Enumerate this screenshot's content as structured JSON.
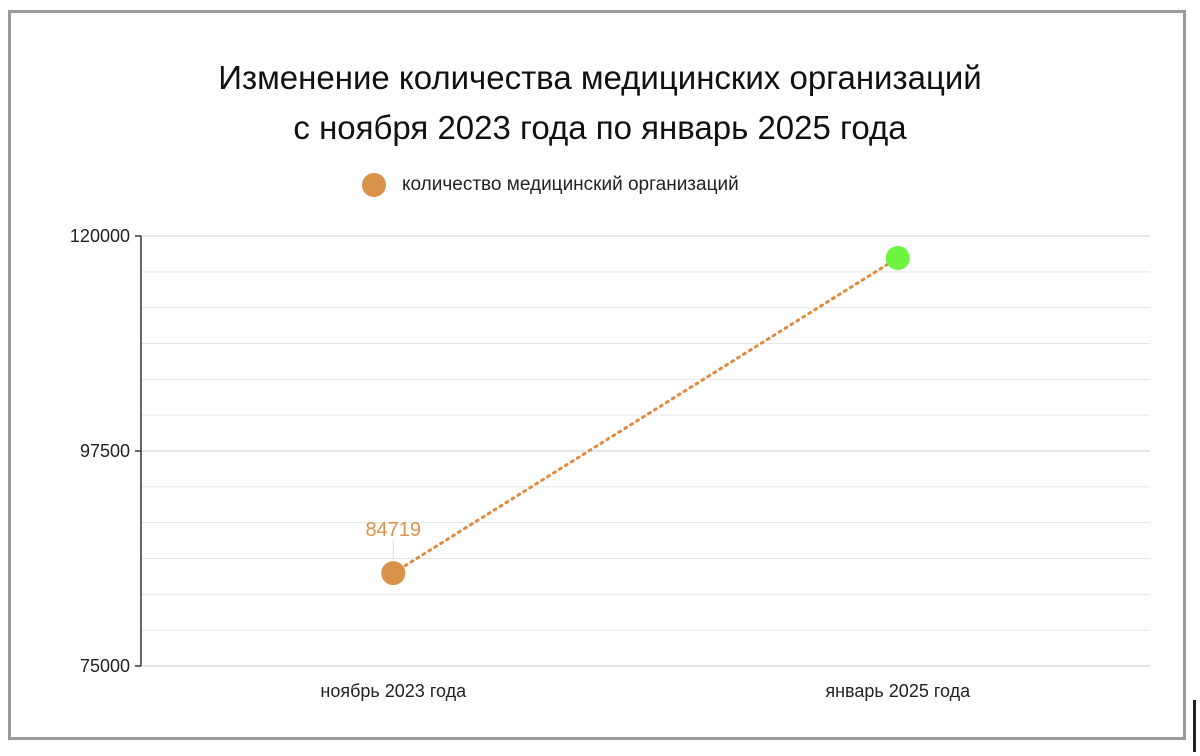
{
  "chart_data": {
    "type": "line",
    "title_line1": "Изменение количества медицинских организаций",
    "title_line2": "с ноября 2023 года по январь 2025 года",
    "categories": [
      "ноябрь 2023 года",
      "январь 2025 года"
    ],
    "series": [
      {
        "name": "количество медицинский организаций",
        "values": [
          84719,
          117700
        ],
        "data_labels": [
          "84719",
          ""
        ],
        "point_colors": [
          "#d9924a",
          "#6ef542"
        ]
      }
    ],
    "ylim": [
      75000,
      120000
    ],
    "y_ticks": [
      "120000",
      "97500",
      "75000"
    ],
    "y_tick_values": [
      120000,
      97500,
      75000
    ],
    "y_minor_step": 3750,
    "line_style": "dotted",
    "line_color": "#e08a3c",
    "grid": true,
    "legend_position": "top"
  }
}
